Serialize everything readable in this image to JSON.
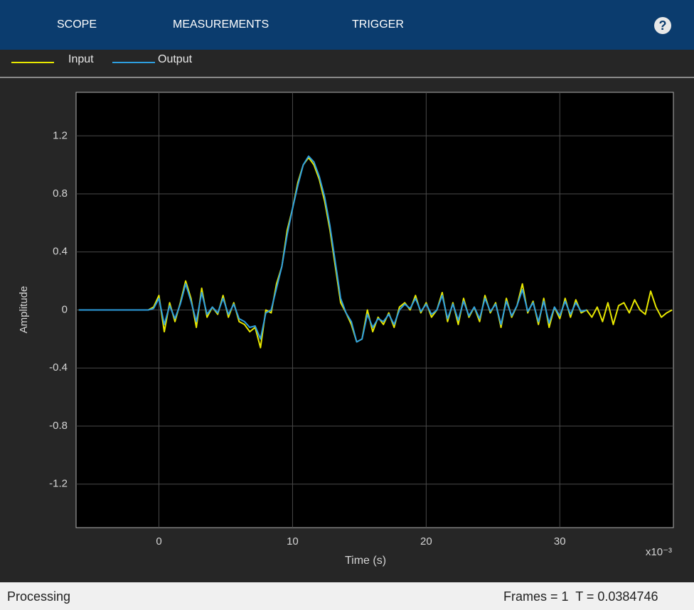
{
  "toolbar": {
    "tabs": [
      "SCOPE",
      "MEASUREMENTS",
      "TRIGGER"
    ],
    "help": "?"
  },
  "status": {
    "left": "Processing",
    "right": "Frames = 1  T = 0.0384746"
  },
  "chart_data": {
    "type": "line",
    "x_label": "Time (s)",
    "y_label": "Amplitude",
    "x_exponent": "x10⁻³",
    "x": [
      -6,
      -5.6,
      -5.2,
      -4.8,
      -4.4,
      -4,
      -3.6,
      -3.2,
      -2.8,
      -2.4,
      -2,
      -1.6,
      -1.2,
      -0.8,
      -0.4,
      0,
      0.4,
      0.8,
      1.2,
      1.6,
      2,
      2.4,
      2.8,
      3.2,
      3.6,
      4,
      4.4,
      4.8,
      5.2,
      5.6,
      6,
      6.4,
      6.8,
      7.2,
      7.6,
      8,
      8.4,
      8.8,
      9.2,
      9.6,
      10,
      10.4,
      10.8,
      11.2,
      11.6,
      12,
      12.4,
      12.8,
      13.2,
      13.6,
      14,
      14.4,
      14.8,
      15.2,
      15.6,
      16,
      16.4,
      16.8,
      17.2,
      17.6,
      18,
      18.4,
      18.8,
      19.2,
      19.6,
      20,
      20.4,
      20.8,
      21.2,
      21.6,
      22,
      22.4,
      22.8,
      23.2,
      23.6,
      24,
      24.4,
      24.8,
      25.2,
      25.6,
      26,
      26.4,
      26.8,
      27.2,
      27.6,
      28,
      28.4,
      28.8,
      29.2,
      29.6,
      30,
      30.4,
      30.8,
      31.2,
      31.6,
      32,
      32.4,
      32.8,
      33.2,
      33.6,
      34,
      34.4,
      34.8,
      35.2,
      35.6,
      36,
      36.4,
      36.8,
      37.2,
      37.6,
      38,
      38.4
    ],
    "series": [
      {
        "name": "Input",
        "color": "#e8e800",
        "values": [
          0,
          0,
          0,
          0,
          0,
          0,
          0,
          0,
          0,
          0,
          0,
          0,
          0,
          0,
          0.02,
          0.1,
          -0.15,
          0.05,
          -0.08,
          0.05,
          0.2,
          0.08,
          -0.12,
          0.15,
          -0.05,
          0.02,
          -0.03,
          0.1,
          -0.05,
          0.05,
          -0.08,
          -0.1,
          -0.15,
          -0.12,
          -0.26,
          0,
          -0.02,
          0.18,
          0.3,
          0.55,
          0.7,
          0.88,
          1,
          1.05,
          1,
          0.9,
          0.75,
          0.55,
          0.3,
          0.05,
          -0.02,
          -0.1,
          -0.22,
          -0.2,
          0,
          -0.15,
          -0.05,
          -0.1,
          -0.02,
          -0.12,
          0.02,
          0.05,
          0,
          0.1,
          -0.02,
          0.05,
          -0.05,
          0,
          0.12,
          -0.08,
          0.05,
          -0.1,
          0.08,
          -0.05,
          0.02,
          -0.08,
          0.1,
          -0.02,
          0.05,
          -0.12,
          0.08,
          -0.05,
          0.03,
          0.18,
          -0.02,
          0.06,
          -0.1,
          0.08,
          -0.12,
          0.02,
          -0.06,
          0.08,
          -0.05,
          0.07,
          -0.02,
          0,
          -0.05,
          0.02,
          -0.08,
          0.05,
          -0.1,
          0.03,
          0.05,
          -0.02,
          0.07,
          0,
          -0.03,
          0.13,
          0.02,
          -0.05,
          -0.02,
          0
        ]
      },
      {
        "name": "Output",
        "color": "#2e9fe0",
        "values": [
          0,
          0,
          0,
          0,
          0,
          0,
          0,
          0,
          0,
          0,
          0,
          0,
          0,
          0,
          0.01,
          0.08,
          -0.1,
          0.03,
          -0.06,
          0.04,
          0.18,
          0.06,
          -0.08,
          0.12,
          -0.03,
          0.02,
          -0.02,
          0.08,
          -0.03,
          0.04,
          -0.06,
          -0.08,
          -0.12,
          -0.11,
          -0.2,
          -0.02,
          0,
          0.15,
          0.3,
          0.52,
          0.7,
          0.86,
          1,
          1.06,
          1.02,
          0.92,
          0.78,
          0.58,
          0.33,
          0.08,
          -0.02,
          -0.08,
          -0.22,
          -0.2,
          -0.03,
          -0.12,
          -0.06,
          -0.08,
          -0.03,
          -0.1,
          0,
          0.04,
          0.01,
          0.08,
          -0.01,
          0.04,
          -0.03,
          0,
          0.1,
          -0.06,
          0.04,
          -0.07,
          0.06,
          -0.04,
          0.02,
          -0.06,
          0.08,
          -0.01,
          0.04,
          -0.1,
          0.06,
          -0.04,
          0.03,
          0.14,
          -0.01,
          0.05,
          -0.08,
          0.06,
          -0.09,
          0.02,
          -0.04,
          0.06,
          -0.03,
          0.05,
          -0.01,
          0,
          null,
          null,
          null,
          null,
          null,
          null,
          null,
          null,
          null,
          null,
          null,
          null,
          null,
          null,
          null,
          null
        ]
      }
    ],
    "xlim": [
      -6.2,
      38.5
    ],
    "ylim": [
      -1.5,
      1.5
    ],
    "xticks": [
      0,
      10,
      20,
      30
    ],
    "yticks": [
      -1.2,
      -0.8,
      -0.4,
      0,
      0.4,
      0.8,
      1.2
    ],
    "grid": true
  }
}
